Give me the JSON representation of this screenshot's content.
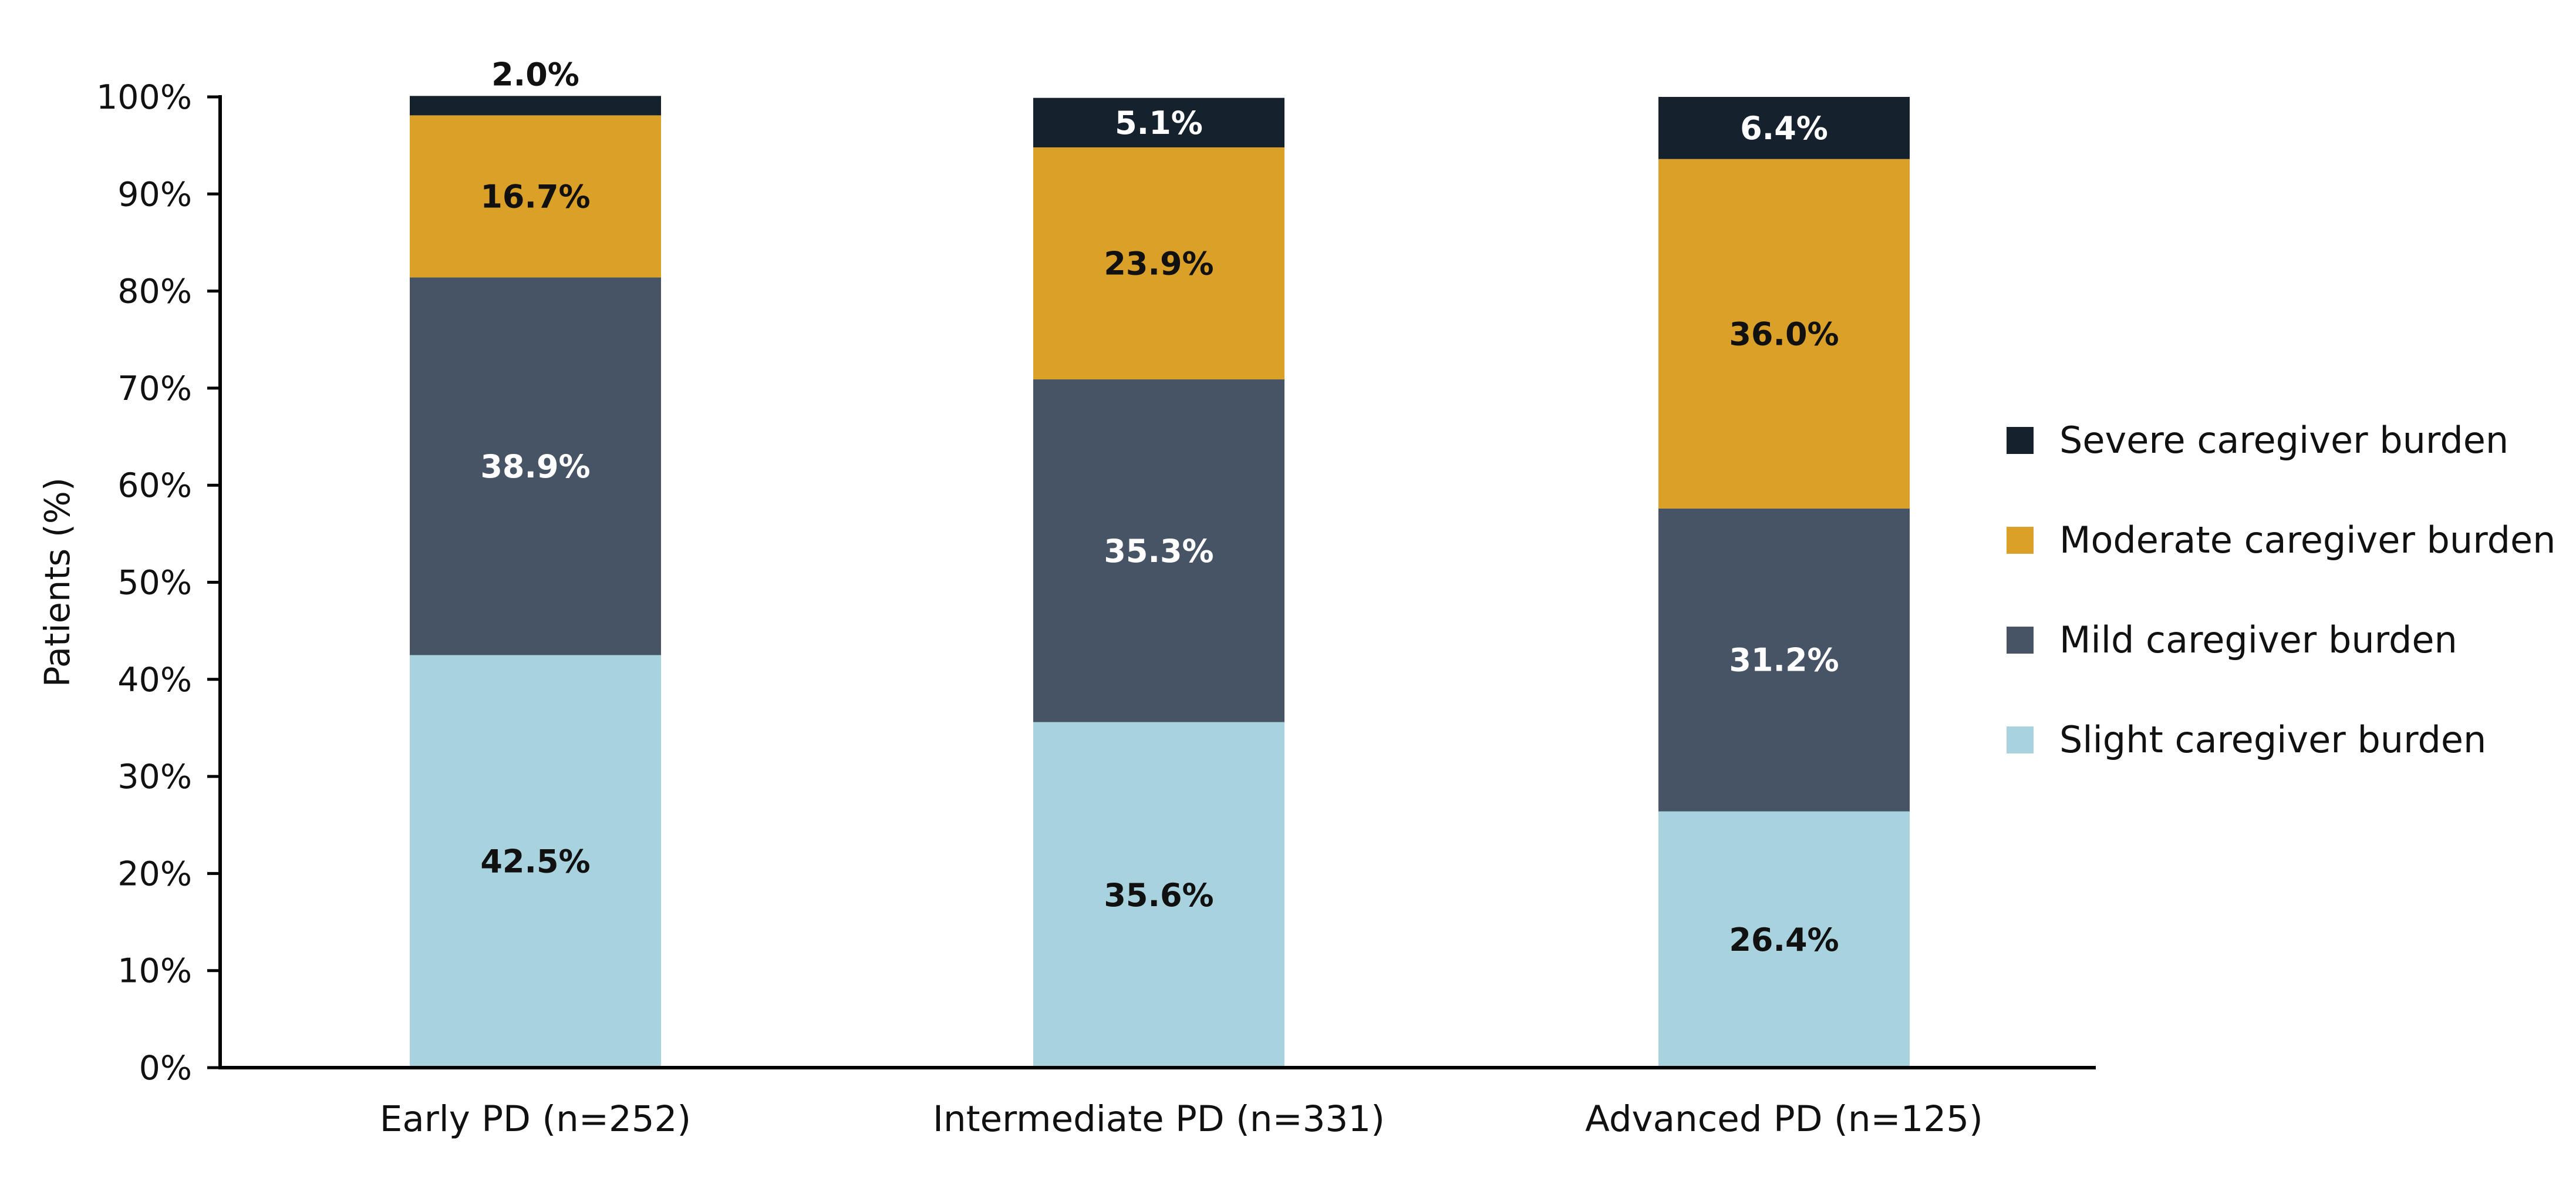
{
  "chart_data": {
    "type": "bar",
    "stacked": true,
    "title": "",
    "xlabel": "",
    "ylabel": "Patients (%)",
    "ylim": [
      0,
      100
    ],
    "yticks": [
      0,
      10,
      20,
      30,
      40,
      50,
      60,
      70,
      80,
      90,
      100
    ],
    "ytick_labels": [
      "0%",
      "10%",
      "20%",
      "30%",
      "40%",
      "50%",
      "60%",
      "70%",
      "80%",
      "90%",
      "100%"
    ],
    "grid": false,
    "legend_position": "right",
    "categories": [
      "Early PD (n=252)",
      "Intermediate PD (n=331)",
      "Advanced PD (n=125)"
    ],
    "series": [
      {
        "name": "Slight caregiver burden",
        "color": "#a8d2de",
        "label_color": "#111111",
        "values": [
          42.5,
          35.6,
          26.4
        ],
        "labels": [
          "42.5%",
          "35.6%",
          "26.4%"
        ]
      },
      {
        "name": "Mild caregiver burden",
        "color": "#475465",
        "label_color": "#ffffff",
        "values": [
          38.9,
          35.3,
          31.2
        ],
        "labels": [
          "38.9%",
          "35.3%",
          "31.2%"
        ]
      },
      {
        "name": "Moderate caregiver burden",
        "color": "#dba028",
        "label_color": "#111111",
        "values": [
          16.7,
          23.9,
          36.0
        ],
        "labels": [
          "16.7%",
          "23.9%",
          "36.0%"
        ]
      },
      {
        "name": "Severe caregiver burden",
        "color": "#15222d",
        "label_color": "#ffffff",
        "values": [
          2.0,
          5.1,
          6.4
        ],
        "labels": [
          "2.0%",
          "5.1%",
          "6.4%"
        ]
      }
    ],
    "legend_order": [
      "Severe caregiver burden",
      "Moderate caregiver burden",
      "Mild caregiver burden",
      "Slight caregiver burden"
    ]
  }
}
